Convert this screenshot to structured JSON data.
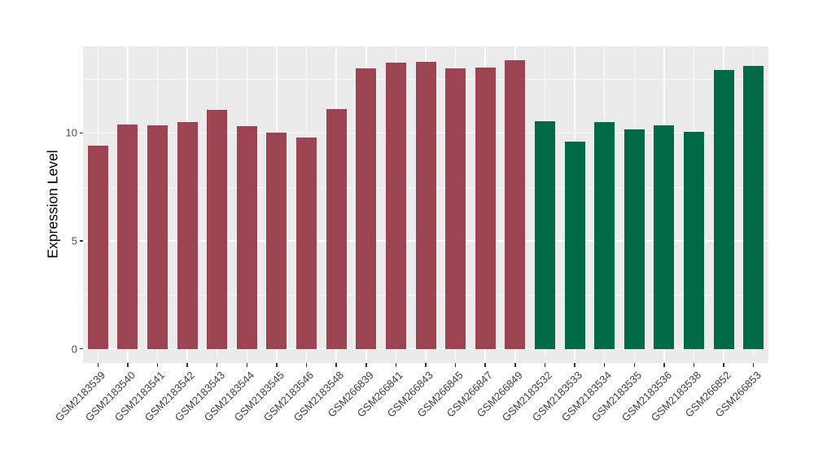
{
  "chart_data": {
    "type": "bar",
    "title": "",
    "xlabel": "",
    "ylabel": "Expression Level",
    "ylim": [
      0,
      14
    ],
    "yticks": [
      0,
      5,
      10
    ],
    "minor_gridlines": [
      2.5,
      7.5,
      12.5
    ],
    "grid": "on",
    "legend": "none",
    "panel_background": "#EBEBEB",
    "gridline_color": "#FFFFFF",
    "tick_color": "#333333",
    "axis_text_color": "#4D4D4D",
    "categories": [
      "GSM2183539",
      "GSM2183540",
      "GSM2183541",
      "GSM2183542",
      "GSM2183543",
      "GSM2183544",
      "GSM2183545",
      "GSM2183546",
      "GSM2183548",
      "GSM266839",
      "GSM266841",
      "GSM266843",
      "GSM266845",
      "GSM266847",
      "GSM266849",
      "GSM2183532",
      "GSM2183533",
      "GSM2183534",
      "GSM2183535",
      "GSM2183536",
      "GSM2183538",
      "GSM266852",
      "GSM266853"
    ],
    "values": [
      9.4,
      10.4,
      10.35,
      10.5,
      11.05,
      10.3,
      10.0,
      9.8,
      11.1,
      12.98,
      13.25,
      13.3,
      13.0,
      13.02,
      13.35,
      10.55,
      9.6,
      10.5,
      10.15,
      10.35,
      10.05,
      12.9,
      13.1
    ],
    "bar_groups": [
      "A",
      "A",
      "A",
      "A",
      "A",
      "A",
      "A",
      "A",
      "A",
      "A",
      "A",
      "A",
      "A",
      "A",
      "A",
      "B",
      "B",
      "B",
      "B",
      "B",
      "B",
      "B",
      "B"
    ],
    "group_colors": {
      "A": "#9C4452",
      "B": "#006946"
    }
  }
}
